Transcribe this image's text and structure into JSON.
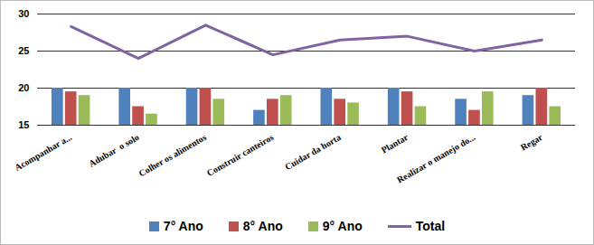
{
  "chart_data": {
    "type": "bar",
    "categories": [
      "Acompanhar a...",
      "Adubar  o solo",
      "Colher os alimentos",
      "Construir canteiros",
      "Cuidar da horta",
      "Plantar",
      "Realizar o manejo do...",
      "Regar"
    ],
    "series": [
      {
        "name": "7° Ano",
        "color": "#4F81BD",
        "type": "bar",
        "values": [
          20,
          20,
          20,
          17,
          20,
          20,
          18.5,
          19
        ]
      },
      {
        "name": "8° Ano",
        "color": "#C0504D",
        "type": "bar",
        "values": [
          19.5,
          17.5,
          20,
          18.5,
          18.5,
          19.5,
          17,
          20
        ]
      },
      {
        "name": "9° Ano",
        "color": "#9BBB59",
        "type": "bar",
        "values": [
          19,
          16.5,
          18.5,
          19,
          18,
          17.5,
          19.5,
          17.5
        ]
      },
      {
        "name": "Total",
        "color": "#8064A2",
        "type": "line",
        "values": [
          28.3,
          24,
          28.5,
          24.5,
          26.5,
          27,
          25,
          26.5
        ]
      }
    ],
    "ylim": [
      15,
      30
    ],
    "yticks": [
      15,
      20,
      25,
      30
    ],
    "grid": true,
    "legend": "bottom"
  }
}
